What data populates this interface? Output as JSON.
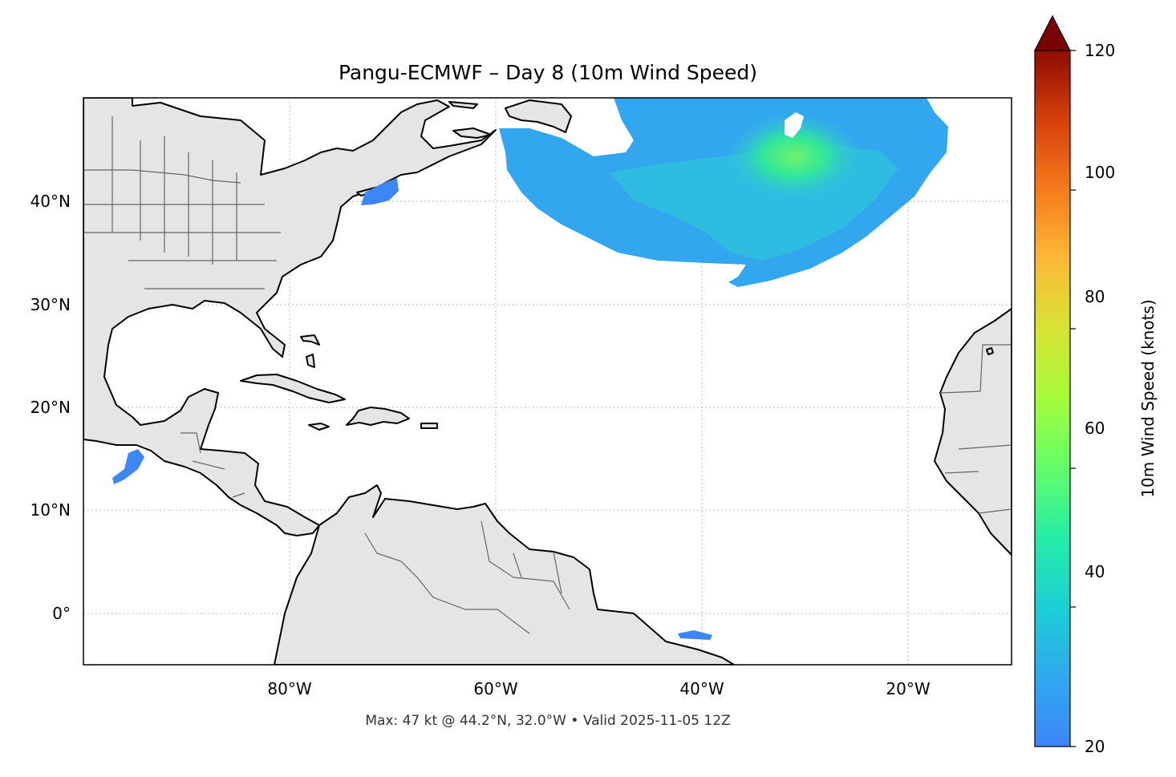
{
  "title": "Pangu-ECMWF – Day 8 (10m Wind Speed)",
  "footer": "Max: 47 kt @ 44.2°N, 32.0°W • Valid 2025-11-05 12Z",
  "map": {
    "lon_range": [
      -100,
      -10
    ],
    "lat_range": [
      -5,
      50
    ],
    "lat_ticks": [
      {
        "value": 40,
        "label": "40°N"
      },
      {
        "value": 30,
        "label": "30°N"
      },
      {
        "value": 20,
        "label": "20°N"
      },
      {
        "value": 10,
        "label": "10°N"
      },
      {
        "value": 0,
        "label": "0°"
      }
    ],
    "lon_ticks": [
      {
        "value": -80,
        "label": "80°W"
      },
      {
        "value": -60,
        "label": "60°W"
      },
      {
        "value": -40,
        "label": "40°W"
      },
      {
        "value": -20,
        "label": "20°W"
      }
    ],
    "gridlines": true,
    "land_color": "#e5e5e5",
    "max_wind": {
      "value_kt": 47,
      "lat": 44.2,
      "lon": -32.0
    }
  },
  "colorbar": {
    "label": "10m Wind Speed (knots)",
    "min": 20,
    "max": 120,
    "extend": "max",
    "ticks": [
      {
        "value": 20,
        "label": "20"
      },
      {
        "value": 40,
        "label": "40"
      },
      {
        "value": 60,
        "label": "60"
      },
      {
        "value": 80,
        "label": "80"
      },
      {
        "value": 100,
        "label": "100"
      },
      {
        "value": 120,
        "label": "120"
      }
    ],
    "colormap": "turbo",
    "over_color": "#7a0403"
  }
}
